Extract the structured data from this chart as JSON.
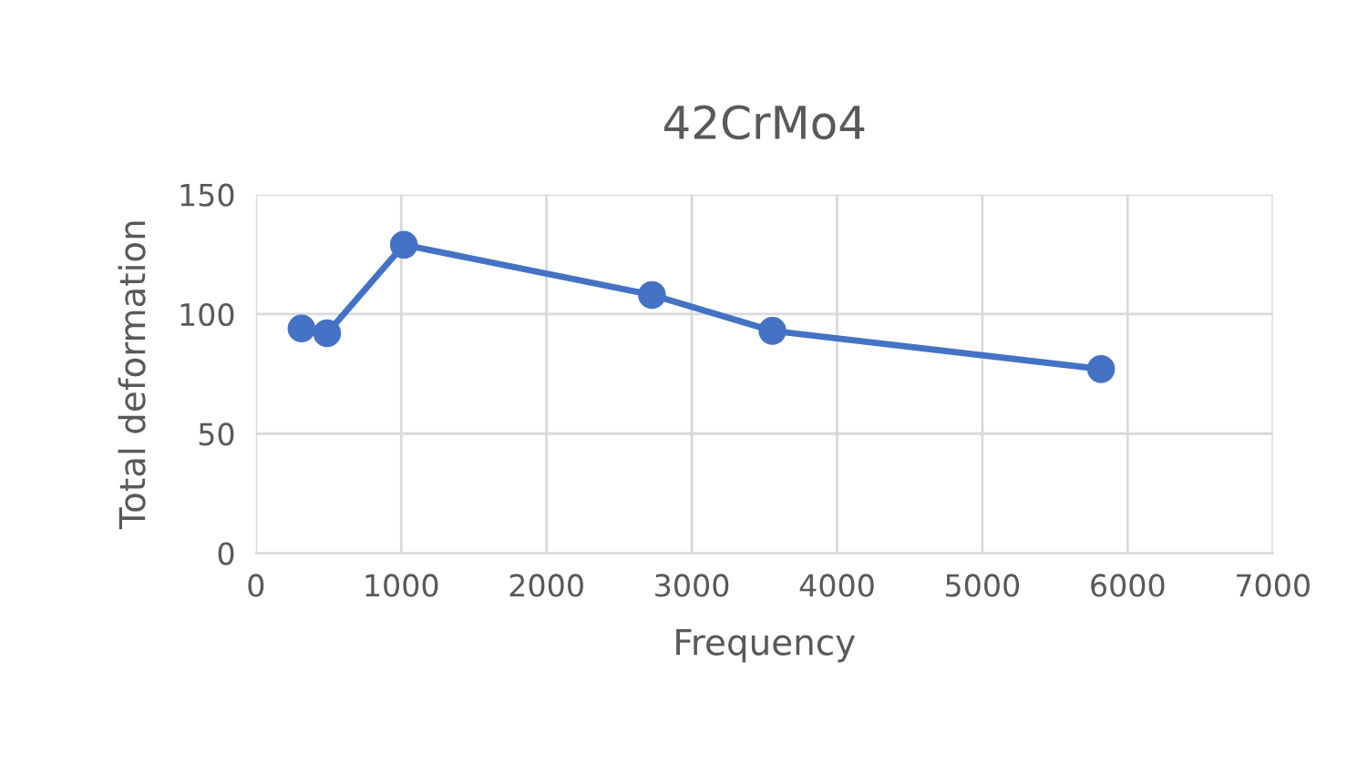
{
  "chart_data": {
    "type": "line",
    "title": "42CrMo4",
    "xlabel": "Frequency",
    "ylabel": "Total deformation",
    "series": [
      {
        "color": "#4472c4",
        "x": [
          314,
          490,
          1018,
          2726,
          3555,
          5817
        ],
        "values": [
          94,
          92,
          129,
          108,
          93,
          77
        ]
      }
    ],
    "xlim": [
      0,
      7000
    ],
    "xticks": [
      0,
      1000,
      2000,
      3000,
      4000,
      5000,
      6000,
      7000
    ],
    "ylim": [
      0,
      150
    ],
    "yticks": [
      0,
      50,
      100,
      150
    ],
    "grid": true,
    "marker": "circle",
    "line_style": "solid"
  }
}
